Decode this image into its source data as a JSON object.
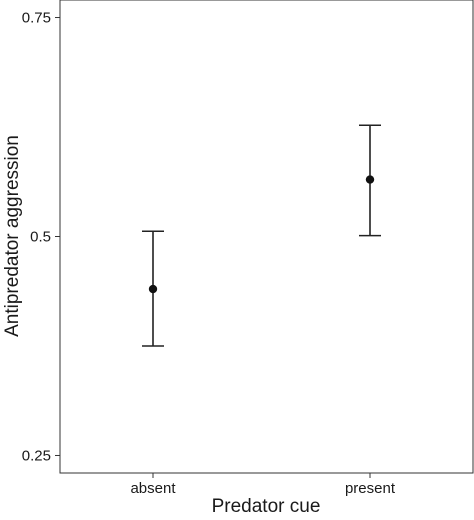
{
  "chart_data": {
    "type": "scatter",
    "subtype": "point-with-error-bars",
    "title": "",
    "xlabel": "Predator cue",
    "ylabel": "Antipredator aggression",
    "categories": [
      "absent",
      "present"
    ],
    "series": [
      {
        "values": [
          0.44,
          0.565
        ],
        "lower": [
          0.375,
          0.501
        ],
        "upper": [
          0.506,
          0.627
        ]
      }
    ],
    "ylim": [
      0.23,
      0.77
    ],
    "yticks": [
      0.25,
      0.5,
      0.75
    ],
    "ytick_labels": [
      "0.25",
      "0.5",
      "0.75"
    ],
    "grid": false,
    "legend": "none",
    "colors": {
      "point": "#111111",
      "errorbar": "#222222",
      "axis": "#333333"
    }
  }
}
